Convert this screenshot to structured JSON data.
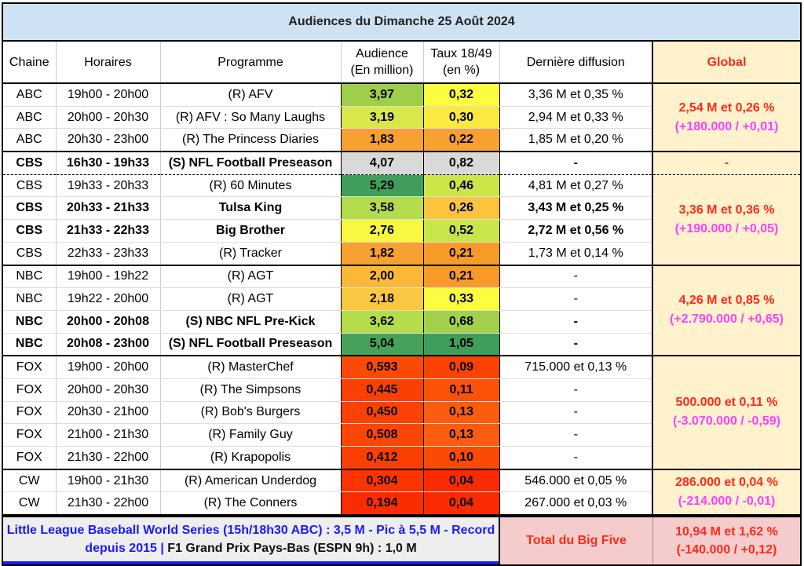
{
  "title": "Audiences du Dimanche 25 Août 2024",
  "headers": {
    "chaine": "Chaine",
    "horaires": "Horaires",
    "programme": "Programme",
    "audience_1": "Audience",
    "audience_2": "(En million)",
    "taux_1": "Taux 18/49",
    "taux_2": "(en %)",
    "derniere": "Dernière diffusion",
    "global": "Global"
  },
  "rows": [
    {
      "chaine": "ABC",
      "horaires": "19h00 - 20h00",
      "programme": "(R) AFV",
      "audience": "3,97",
      "taux": "0,32",
      "derniere": "3,36 M et 0,35 %",
      "bold": false,
      "aud_color": "#9fcf4a",
      "taux_color": "#fcfc40"
    },
    {
      "chaine": "ABC",
      "horaires": "20h00 - 20h30",
      "programme": "(R) AFV : So Many Laughs",
      "audience": "3,19",
      "taux": "0,30",
      "derniere": "2,94 M et 0,33 %",
      "bold": false,
      "aud_color": "#d8e84a",
      "taux_color": "#fbe840"
    },
    {
      "chaine": "ABC",
      "horaires": "20h30 - 23h00",
      "programme": "(R) The Princess Diaries",
      "audience": "1,83",
      "taux": "0,22",
      "derniere": "1,85 M et 0,20 %",
      "bold": false,
      "aud_color": "#f8a030",
      "taux_color": "#f8a030"
    },
    {
      "chaine": "CBS",
      "horaires": "16h30 - 19h33",
      "programme": "(S) NFL Football Preseason",
      "audience": "4,07",
      "taux": "0,82",
      "derniere": "-",
      "bold": true,
      "aud_color": "#d9d9d9",
      "taux_color": "#d9d9d9"
    },
    {
      "chaine": "CBS",
      "horaires": "19h33 - 20h33",
      "programme": "(R) 60 Minutes",
      "audience": "5,29",
      "taux": "0,46",
      "derniere": "4,81 M et 0,27 %",
      "bold": false,
      "aud_color": "#3f9e5a",
      "taux_color": "#cce64a"
    },
    {
      "chaine": "CBS",
      "horaires": "20h33 - 21h33",
      "programme": "Tulsa King",
      "audience": "3,58",
      "taux": "0,26",
      "derniere": "3,43 M et 0,25 %",
      "bold": true,
      "aud_color": "#b5dc4a",
      "taux_color": "#fbc43c"
    },
    {
      "chaine": "CBS",
      "horaires": "21h33 - 22h33",
      "programme": "Big Brother",
      "audience": "2,76",
      "taux": "0,52",
      "derniere": "2,72 M et 0,56 %",
      "bold": true,
      "aud_color": "#f8f840",
      "taux_color": "#c8e64a"
    },
    {
      "chaine": "CBS",
      "horaires": "22h33 - 23h33",
      "programme": "(R) Tracker",
      "audience": "1,82",
      "taux": "0,21",
      "derniere": "1,73 M et 0,14 %",
      "bold": false,
      "aud_color": "#f8a030",
      "taux_color": "#f89a28"
    },
    {
      "chaine": "NBC",
      "horaires": "19h00 - 19h22",
      "programme": "(R) AGT",
      "audience": "2,00",
      "taux": "0,21",
      "derniere": "-",
      "bold": false,
      "aud_color": "#fbb838",
      "taux_color": "#f89a28"
    },
    {
      "chaine": "NBC",
      "horaires": "19h22 - 20h00",
      "programme": "(R) AGT",
      "audience": "2,18",
      "taux": "0,33",
      "derniere": "-",
      "bold": false,
      "aud_color": "#fcc840",
      "taux_color": "#fcfc40"
    },
    {
      "chaine": "NBC",
      "horaires": "20h00 - 20h08",
      "programme": "(S) NBC NFL Pre-Kick",
      "audience": "3,62",
      "taux": "0,68",
      "derniere": "-",
      "bold": true,
      "aud_color": "#b5dc4a",
      "taux_color": "#a3d24a"
    },
    {
      "chaine": "NBC",
      "horaires": "20h08 - 23h00",
      "programme": "(S) NFL Football Preseason",
      "audience": "5,04",
      "taux": "1,05",
      "derniere": "-",
      "bold": true,
      "aud_color": "#46a25a",
      "taux_color": "#3f9e5a"
    },
    {
      "chaine": "FOX",
      "horaires": "19h00 - 20h00",
      "programme": "(R) MasterChef",
      "audience": "0,593",
      "taux": "0,09",
      "derniere": "715.000 et 0,13 %",
      "bold": false,
      "aud_color": "#fb4a08",
      "taux_color": "#fb4200"
    },
    {
      "chaine": "FOX",
      "horaires": "20h00 - 20h30",
      "programme": "(R) The Simpsons",
      "audience": "0,445",
      "taux": "0,11",
      "derniere": "-",
      "bold": false,
      "aud_color": "#fb4004",
      "taux_color": "#fb5208"
    },
    {
      "chaine": "FOX",
      "horaires": "20h30 - 21h00",
      "programme": "(R) Bob's Burgers",
      "audience": "0,450",
      "taux": "0,13",
      "derniere": "-",
      "bold": false,
      "aud_color": "#fb4204",
      "taux_color": "#fb5c10"
    },
    {
      "chaine": "FOX",
      "horaires": "21h00 - 21h30",
      "programme": "(R) Family Guy",
      "audience": "0,508",
      "taux": "0,13",
      "derniere": "-",
      "bold": false,
      "aud_color": "#fb4606",
      "taux_color": "#fb5c10"
    },
    {
      "chaine": "FOX",
      "horaires": "21h30 - 22h00",
      "programme": "(R) Krapopolis",
      "audience": "0,412",
      "taux": "0,10",
      "derniere": "-",
      "bold": false,
      "aud_color": "#fb3e02",
      "taux_color": "#fb4a04"
    },
    {
      "chaine": "CW",
      "horaires": "19h00 - 21h30",
      "programme": "(R) American Underdog",
      "audience": "0,304",
      "taux": "0,04",
      "derniere": "546.000 et 0,05 %",
      "bold": false,
      "aud_color": "#fb3400",
      "taux_color": "#fb2a00"
    },
    {
      "chaine": "CW",
      "horaires": "21h30 - 22h00",
      "programme": "(R) The Conners",
      "audience": "0,194",
      "taux": "0,04",
      "derniere": "267.000 et 0,03 %",
      "bold": false,
      "aud_color": "#fb2c00",
      "taux_color": "#fb2a00"
    }
  ],
  "groups": [
    {
      "start": 0,
      "span": 3,
      "global": "2,54 M et 0,26 %",
      "delta": "(+180.000 / +0,01)"
    },
    {
      "start": 3,
      "span": 1,
      "global": "-",
      "delta": ""
    },
    {
      "start": 4,
      "span": 4,
      "global": "3,36 M et 0,36 %",
      "delta": "(+190.000 / +0,05)"
    },
    {
      "start": 8,
      "span": 4,
      "global": "4,26 M et 0,85 %",
      "delta": "(+2.790.000 / +0,65)"
    },
    {
      "start": 12,
      "span": 5,
      "global": "500.000 et 0,11 %",
      "delta": "(-3.070.000 / -0,59)"
    },
    {
      "start": 17,
      "span": 2,
      "global": "286.000 et 0,04 %",
      "delta": "(-214.000 / -0,01)"
    }
  ],
  "footer": {
    "note_blue": "Little League Baseball World Series (15h/18h30 ABC) : 3,5 M - Pic à 5,5 M - Record depuis 2015 | ",
    "note_black": "F1 Grand Prix Pays-Bas (ESPN 9h) : 1,0 M",
    "total_label": "Total du Big Five",
    "total_value": "10,94 M et 1,62 %",
    "total_delta": "(-140.000 / +0,12)"
  }
}
